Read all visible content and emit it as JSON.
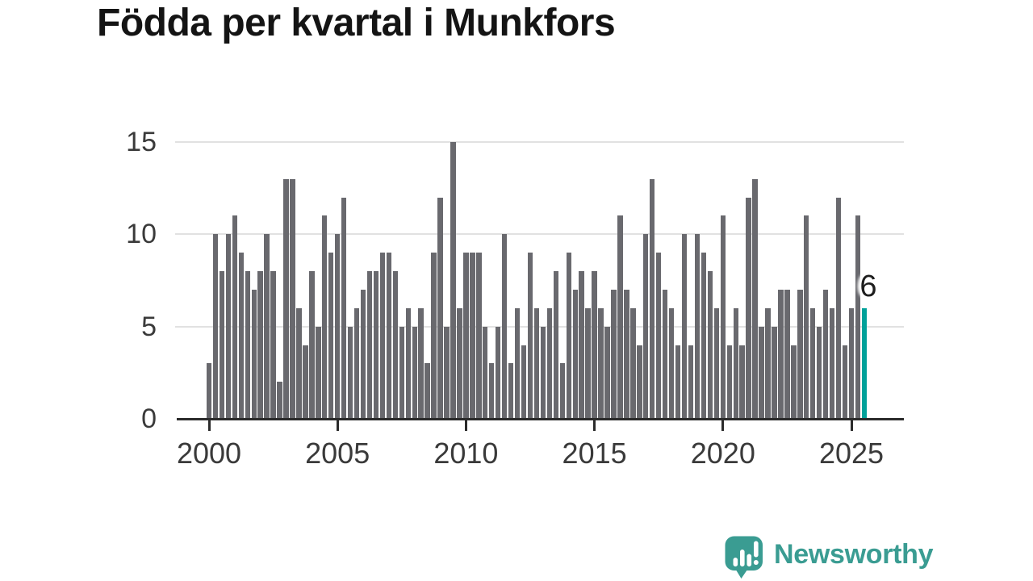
{
  "title": "Födda per kvartal i Munkfors",
  "chart_data": {
    "type": "bar",
    "title": "Födda per kvartal i Munkfors",
    "frequency": "quarterly",
    "start": "2000-Q1",
    "end": "2025-Q3",
    "values": [
      3,
      10,
      8,
      10,
      11,
      9,
      8,
      7,
      8,
      10,
      8,
      2,
      13,
      13,
      6,
      4,
      8,
      5,
      11,
      9,
      10,
      12,
      5,
      6,
      7,
      8,
      8,
      9,
      9,
      8,
      5,
      6,
      5,
      6,
      3,
      9,
      12,
      5,
      15,
      6,
      9,
      9,
      9,
      5,
      3,
      5,
      10,
      3,
      6,
      4,
      9,
      6,
      5,
      6,
      8,
      3,
      9,
      7,
      8,
      6,
      8,
      6,
      5,
      7,
      11,
      7,
      6,
      4,
      10,
      13,
      9,
      7,
      6,
      4,
      10,
      4,
      10,
      9,
      8,
      6,
      11,
      4,
      6,
      4,
      12,
      13,
      5,
      6,
      5,
      7,
      7,
      4,
      7,
      11,
      6,
      5,
      7,
      6,
      12,
      4,
      6,
      11,
      6
    ],
    "ylim": [
      0,
      15
    ],
    "yticks": [
      0,
      5,
      10,
      15
    ],
    "xticks": [
      {
        "label": "2000",
        "index": 0
      },
      {
        "label": "2005",
        "index": 20
      },
      {
        "label": "2010",
        "index": 40
      },
      {
        "label": "2015",
        "index": 60
      },
      {
        "label": "2020",
        "index": 80
      },
      {
        "label": "2025",
        "index": 100
      }
    ],
    "grid": true,
    "legend": false,
    "bar_color": "#69696e",
    "highlight": {
      "index": 102,
      "value": 6,
      "label": "6",
      "color": "#00a19a"
    }
  },
  "branding": {
    "logo_text": "Newsworthy",
    "logo_icon": "speech-bubble-bar-chart-icon",
    "color": "#3a9c92"
  }
}
